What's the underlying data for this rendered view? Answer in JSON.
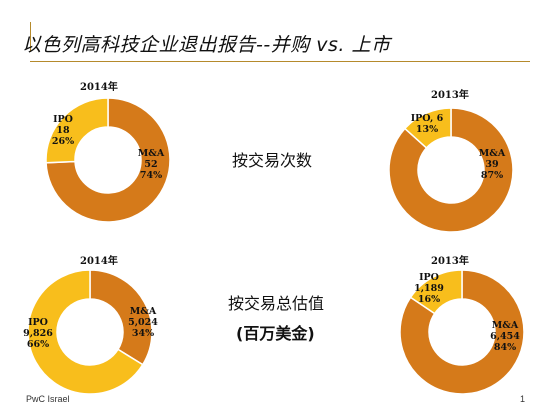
{
  "slide": {
    "title": "以色列高科技企业退出报告--并购   vs.  上市",
    "label_count": "按交易次数",
    "label_value_line1": "按交易总估值",
    "label_value_line2": "(百万美金)",
    "footer_left": "PwC Israel",
    "footer_right": "1"
  },
  "colors": {
    "ma": "#d57a1a",
    "ipo": "#f8be1c"
  },
  "chart_data": [
    {
      "type": "pie",
      "title": "2014年",
      "series": [
        {
          "name": "M&A",
          "value": 52,
          "percent": "74%"
        },
        {
          "name": "IPO",
          "value": 18,
          "percent": "26%"
        }
      ]
    },
    {
      "type": "pie",
      "title": "2013年",
      "series": [
        {
          "name": "M&A",
          "value": 39,
          "percent": "87%"
        },
        {
          "name": "IPO",
          "value": 6,
          "percent": "13%"
        }
      ]
    },
    {
      "type": "pie",
      "title": "2014年",
      "series": [
        {
          "name": "M&A",
          "value": 5024,
          "value_label": "5,024",
          "percent": "34%"
        },
        {
          "name": "IPO",
          "value": 9826,
          "value_label": "9,826",
          "percent": "66%"
        }
      ]
    },
    {
      "type": "pie",
      "title": "2013年",
      "series": [
        {
          "name": "M&A",
          "value": 6454,
          "value_label": "6,454",
          "percent": "84%"
        },
        {
          "name": "IPO",
          "value": 1189,
          "value_label": "1,189",
          "percent": "16%"
        }
      ]
    }
  ]
}
